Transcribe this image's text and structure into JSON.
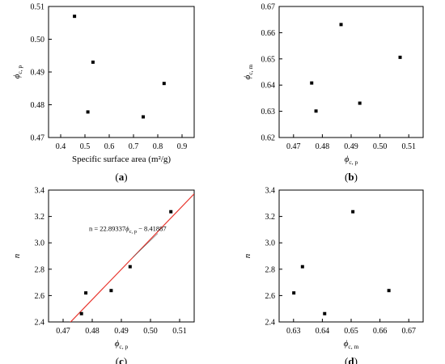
{
  "chart_data": [
    {
      "type": "scatter",
      "panel_label": "(a)",
      "xlabel": "Specific surface area (m²/g)",
      "ylabel": "ϕ",
      "ylabel_sub": "c, p",
      "xlim": [
        0.35,
        0.95
      ],
      "ylim": [
        0.47,
        0.51
      ],
      "xticks": [
        0.4,
        0.5,
        0.6,
        0.7,
        0.8,
        0.9
      ],
      "xtick_labels": [
        "0.4",
        "0.5",
        "0.6",
        "0.7",
        "0.8",
        "0.9"
      ],
      "yticks": [
        0.47,
        0.48,
        0.49,
        0.5,
        0.51
      ],
      "ytick_labels": [
        "0.47",
        "0.48",
        "0.49",
        "0.50",
        "0.51"
      ],
      "points": [
        {
          "x": 0.457,
          "y": 0.507
        },
        {
          "x": 0.512,
          "y": 0.4778
        },
        {
          "x": 0.533,
          "y": 0.493
        },
        {
          "x": 0.74,
          "y": 0.4763
        },
        {
          "x": 0.826,
          "y": 0.4865
        }
      ]
    },
    {
      "type": "scatter",
      "panel_label": "(b)",
      "xlabel": "ϕ",
      "xlabel_sub": "c, p",
      "ylabel": "ϕ",
      "ylabel_sub": "c, m",
      "xlim": [
        0.465,
        0.515
      ],
      "ylim": [
        0.62,
        0.67
      ],
      "xticks": [
        0.47,
        0.48,
        0.49,
        0.5,
        0.51
      ],
      "xtick_labels": [
        "0.47",
        "0.48",
        "0.49",
        "0.50",
        "0.51"
      ],
      "yticks": [
        0.62,
        0.63,
        0.64,
        0.65,
        0.66,
        0.67
      ],
      "ytick_labels": [
        "0.62",
        "0.63",
        "0.64",
        "0.65",
        "0.66",
        "0.67"
      ],
      "points": [
        {
          "x": 0.4763,
          "y": 0.6408
        },
        {
          "x": 0.4778,
          "y": 0.6301
        },
        {
          "x": 0.4865,
          "y": 0.6631
        },
        {
          "x": 0.493,
          "y": 0.6331
        },
        {
          "x": 0.507,
          "y": 0.6506
        }
      ]
    },
    {
      "type": "scatter",
      "panel_label": "(c)",
      "xlabel": "ϕ",
      "xlabel_sub": "c, p",
      "ylabel": "n",
      "xlim": [
        0.465,
        0.515
      ],
      "ylim": [
        2.4,
        3.4
      ],
      "xticks": [
        0.47,
        0.48,
        0.49,
        0.5,
        0.51
      ],
      "xtick_labels": [
        "0.47",
        "0.48",
        "0.49",
        "0.50",
        "0.51"
      ],
      "yticks": [
        2.4,
        2.6,
        2.8,
        3.0,
        3.2,
        3.4
      ],
      "ytick_labels": [
        "2.4",
        "2.6",
        "2.8",
        "3.0",
        "3.2",
        "3.4"
      ],
      "points": [
        {
          "x": 0.4763,
          "y": 2.463
        },
        {
          "x": 0.4778,
          "y": 2.62
        },
        {
          "x": 0.4865,
          "y": 2.638
        },
        {
          "x": 0.493,
          "y": 2.819
        },
        {
          "x": 0.507,
          "y": 3.236
        }
      ],
      "fit_line": {
        "slope": 22.89337,
        "intercept": -8.41887,
        "color": "#e8342c"
      },
      "annotation": {
        "prefix": "n = 22.89337",
        "symbol": "ϕ",
        "sub": "c, p",
        "suffix": " − 8.41887"
      }
    },
    {
      "type": "scatter",
      "panel_label": "(d)",
      "xlabel": "ϕ",
      "xlabel_sub": "c, m",
      "ylabel": "n",
      "xlim": [
        0.625,
        0.675
      ],
      "ylim": [
        2.4,
        3.4
      ],
      "xticks": [
        0.63,
        0.64,
        0.65,
        0.66,
        0.67
      ],
      "xtick_labels": [
        "0.63",
        "0.64",
        "0.65",
        "0.66",
        "0.67"
      ],
      "yticks": [
        2.4,
        2.6,
        2.8,
        3.0,
        3.2,
        3.4
      ],
      "ytick_labels": [
        "2.4",
        "2.6",
        "2.8",
        "3.0",
        "3.2",
        "3.4"
      ],
      "points": [
        {
          "x": 0.6301,
          "y": 2.62
        },
        {
          "x": 0.6331,
          "y": 2.819
        },
        {
          "x": 0.6408,
          "y": 2.463
        },
        {
          "x": 0.6506,
          "y": 3.236
        },
        {
          "x": 0.6631,
          "y": 2.638
        }
      ]
    }
  ]
}
